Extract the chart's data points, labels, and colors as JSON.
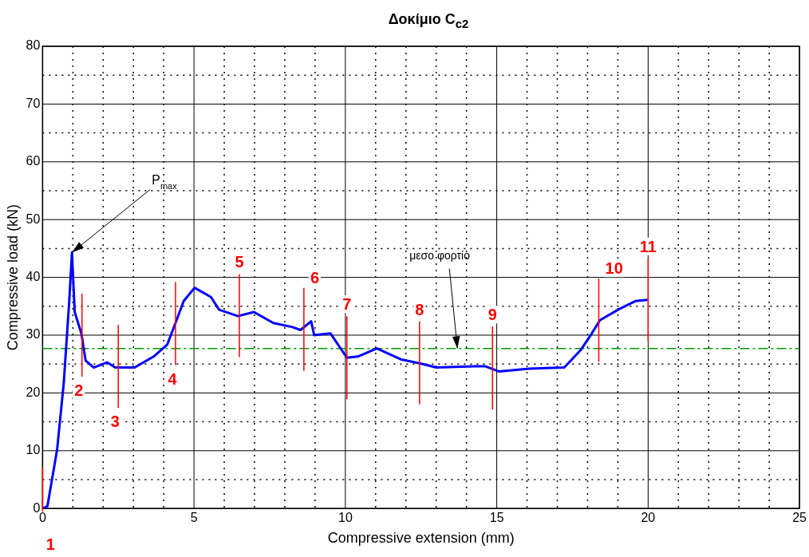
{
  "chart_data": {
    "type": "line",
    "title": "Δοκίμιο C$_{c2}$",
    "xlabel": "Compressive extension (mm)",
    "ylabel": "Compressive load (kN)",
    "xlim": [
      0,
      25
    ],
    "ylim": [
      0,
      80
    ],
    "xticks": [
      0,
      {
        "value": 1,
        "label": null
      },
      {
        "value": 2,
        "label": null
      },
      {
        "value": 3,
        "label": null
      },
      {
        "value": 4,
        "label": null
      },
      5,
      {
        "value": 6,
        "label": null
      },
      {
        "value": 7,
        "label": null
      },
      {
        "value": 8,
        "label": null
      },
      {
        "value": 9,
        "label": null
      },
      10,
      {
        "value": 11,
        "label": null
      },
      {
        "value": 12,
        "label": null
      },
      {
        "value": 13,
        "label": null
      },
      {
        "value": 14,
        "label": null
      },
      15,
      {
        "value": 16,
        "label": null
      },
      {
        "value": 17,
        "label": null
      },
      {
        "value": 18,
        "label": null
      },
      {
        "value": 19,
        "label": null
      },
      20,
      {
        "value": 21,
        "label": null
      },
      {
        "value": 22,
        "label": null
      },
      {
        "value": 23,
        "label": null
      },
      {
        "value": 24,
        "label": null
      },
      25
    ],
    "yticks": [
      0,
      {
        "value": 5,
        "label": null
      },
      10,
      {
        "value": 15,
        "label": null
      },
      20,
      {
        "value": 25,
        "label": null
      },
      30,
      {
        "value": 35,
        "label": null
      },
      40,
      {
        "value": 45,
        "label": null
      },
      50,
      {
        "value": 55,
        "label": null
      },
      60,
      {
        "value": 65,
        "label": null
      },
      70,
      {
        "value": 75,
        "label": null
      },
      80
    ],
    "grid": true,
    "legend": false,
    "marker": "none",
    "line_style": "solid",
    "series": [
      {
        "color": "#0000ff",
        "x": [
          0,
          0.16,
          0.48,
          0.7,
          0.88,
          0.97,
          1.06,
          1.28,
          1.42,
          1.69,
          2.13,
          2.4,
          3.04,
          3.67,
          4.12,
          4.39,
          4.66,
          5.02,
          5.56,
          5.83,
          6.45,
          6.98,
          7.62,
          8.25,
          8.52,
          8.87,
          8.97,
          9.51,
          10.05,
          10.41,
          11.04,
          11.84,
          12.48,
          13.0,
          14.27,
          14.63,
          15.08,
          16.07,
          17.23,
          17.77,
          18.14,
          18.41,
          19.04,
          19.58,
          19.98
        ],
        "values": [
          0,
          0.4,
          10.2,
          21.8,
          35.9,
          44.3,
          34,
          30.3,
          25.6,
          24.4,
          25.3,
          24.4,
          24.4,
          26.3,
          28.4,
          32.1,
          35.9,
          38.2,
          36.6,
          34.4,
          33.3,
          34,
          32.1,
          31.4,
          30.9,
          32.4,
          30,
          30.3,
          26.1,
          26.3,
          27.7,
          25.8,
          25.1,
          24.4,
          24.6,
          24.6,
          23.7,
          24.2,
          24.4,
          27.4,
          30.3,
          32.6,
          34.5,
          35.9,
          36.1
        ]
      }
    ],
    "ref_lines": [
      {
        "axis": "y",
        "value": 27.7,
        "color": "#009900",
        "line_style": "dashed"
      }
    ],
    "annotations": [
      {
        "text": "P$_{max}$",
        "x": 0.97,
        "y": 44.3
      },
      {
        "text": "μεσο φορτίο",
        "x": 13.7,
        "y": 27.7
      },
      {
        "text": "1",
        "x": 0,
        "y": 0
      },
      {
        "text": "2",
        "x": 1.3,
        "y": 30
      },
      {
        "text": "3",
        "x": 2.5,
        "y": 24.6
      },
      {
        "text": "4",
        "x": 4.39,
        "y": 32
      },
      {
        "text": "5",
        "x": 6.5,
        "y": 33.4
      },
      {
        "text": "6",
        "x": 8.63,
        "y": 31
      },
      {
        "text": "7",
        "x": 10.05,
        "y": 26.1
      },
      {
        "text": "8",
        "x": 12.45,
        "y": 25.2
      },
      {
        "text": "9",
        "x": 14.86,
        "y": 24.3
      },
      {
        "text": "10",
        "x": 18.37,
        "y": 32.6
      },
      {
        "text": "11",
        "x": 20,
        "y": 36.1
      }
    ]
  }
}
